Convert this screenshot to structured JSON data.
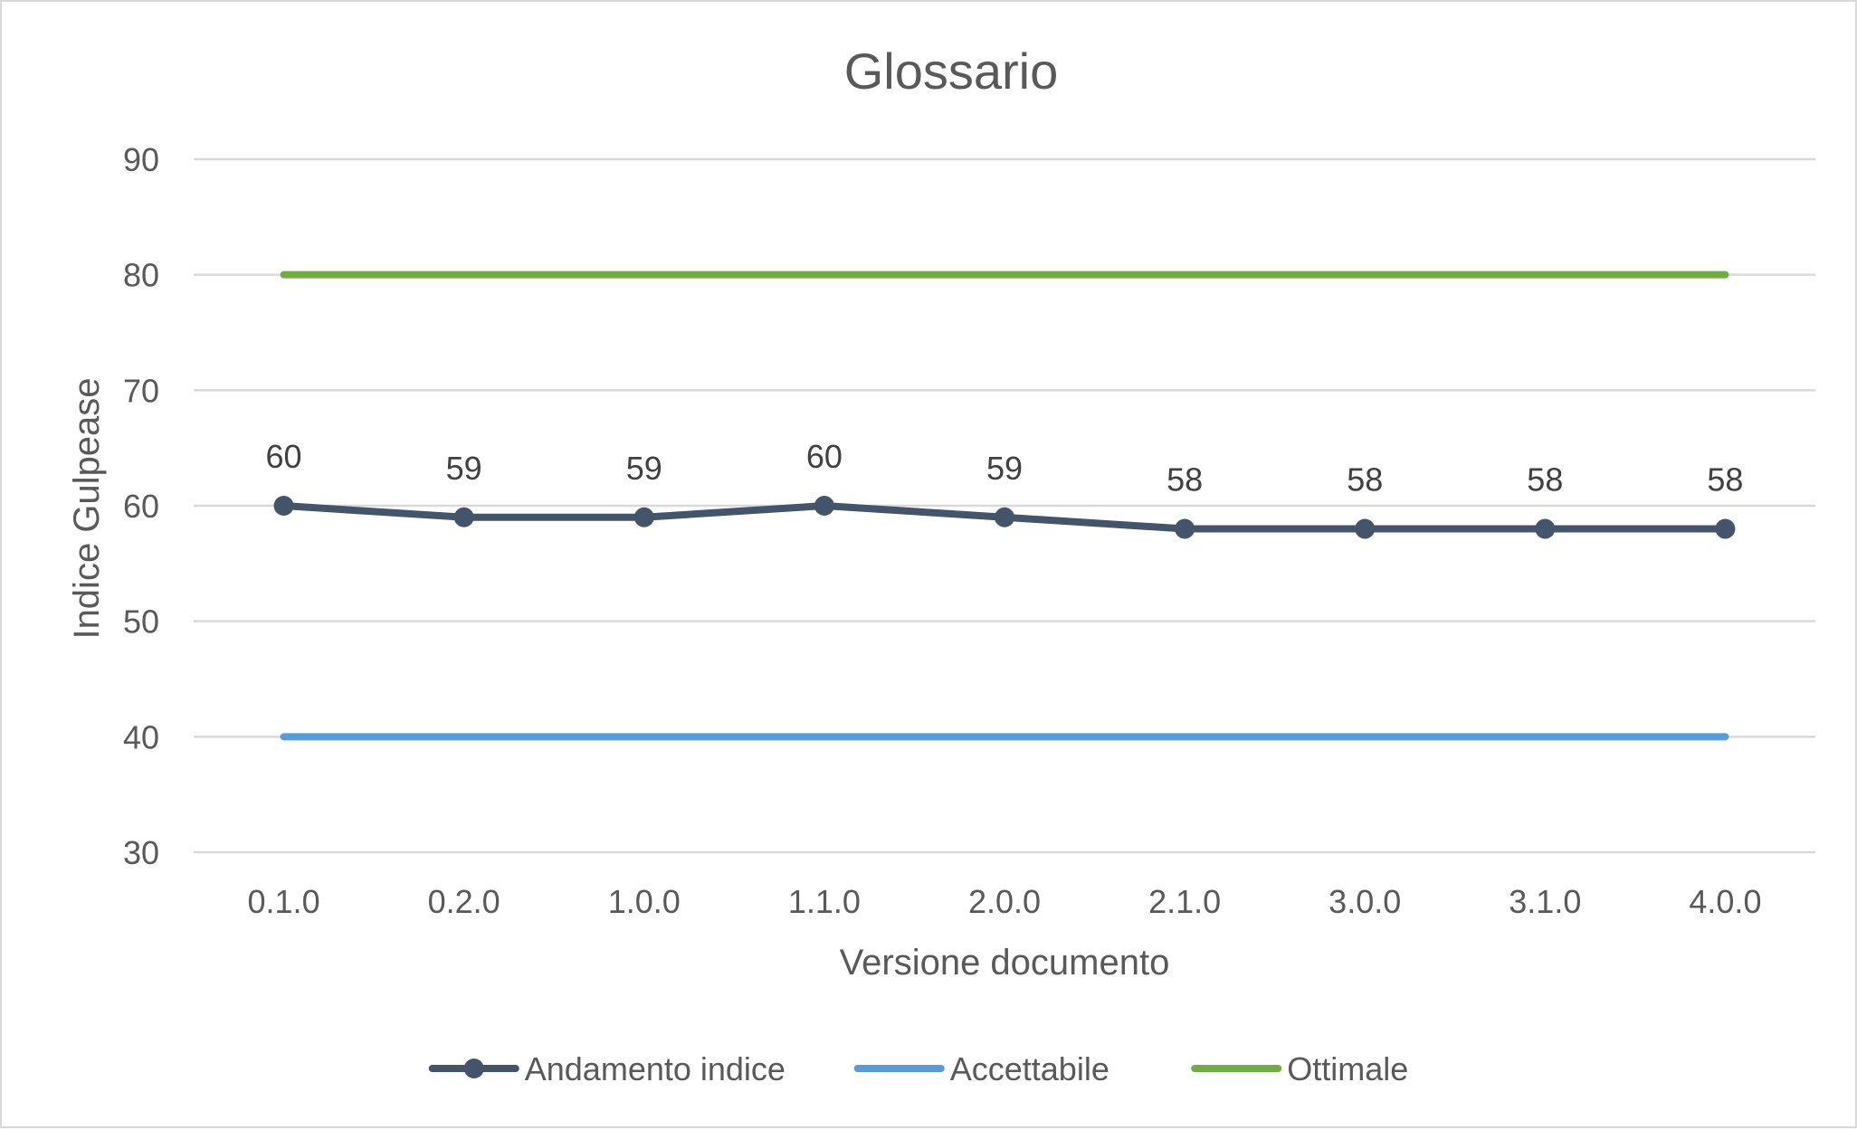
{
  "chart_data": {
    "type": "line",
    "title": "Glossario",
    "xlabel": "Versione documento",
    "ylabel": "Indice Gulpease",
    "ylim": [
      30,
      90
    ],
    "yticks": [
      30,
      40,
      50,
      60,
      70,
      80,
      90
    ],
    "grid": true,
    "legend_position": "bottom",
    "categories": [
      "0.1.0",
      "0.2.0",
      "1.0.0",
      "1.1.0",
      "2.0.0",
      "2.1.0",
      "3.0.0",
      "3.1.0",
      "4.0.0"
    ],
    "series": [
      {
        "name": "Andamento indice",
        "values": [
          60,
          59,
          59,
          60,
          59,
          58,
          58,
          58,
          58
        ],
        "color": "#44546a",
        "markers": true,
        "data_labels": true
      },
      {
        "name": "Accettabile",
        "values": [
          40,
          40,
          40,
          40,
          40,
          40,
          40,
          40,
          40
        ],
        "color": "#5b9bd5",
        "markers": false,
        "data_labels": false
      },
      {
        "name": "Ottimale",
        "values": [
          80,
          80,
          80,
          80,
          80,
          80,
          80,
          80,
          80
        ],
        "color": "#70ad47",
        "markers": false,
        "data_labels": false
      }
    ]
  }
}
